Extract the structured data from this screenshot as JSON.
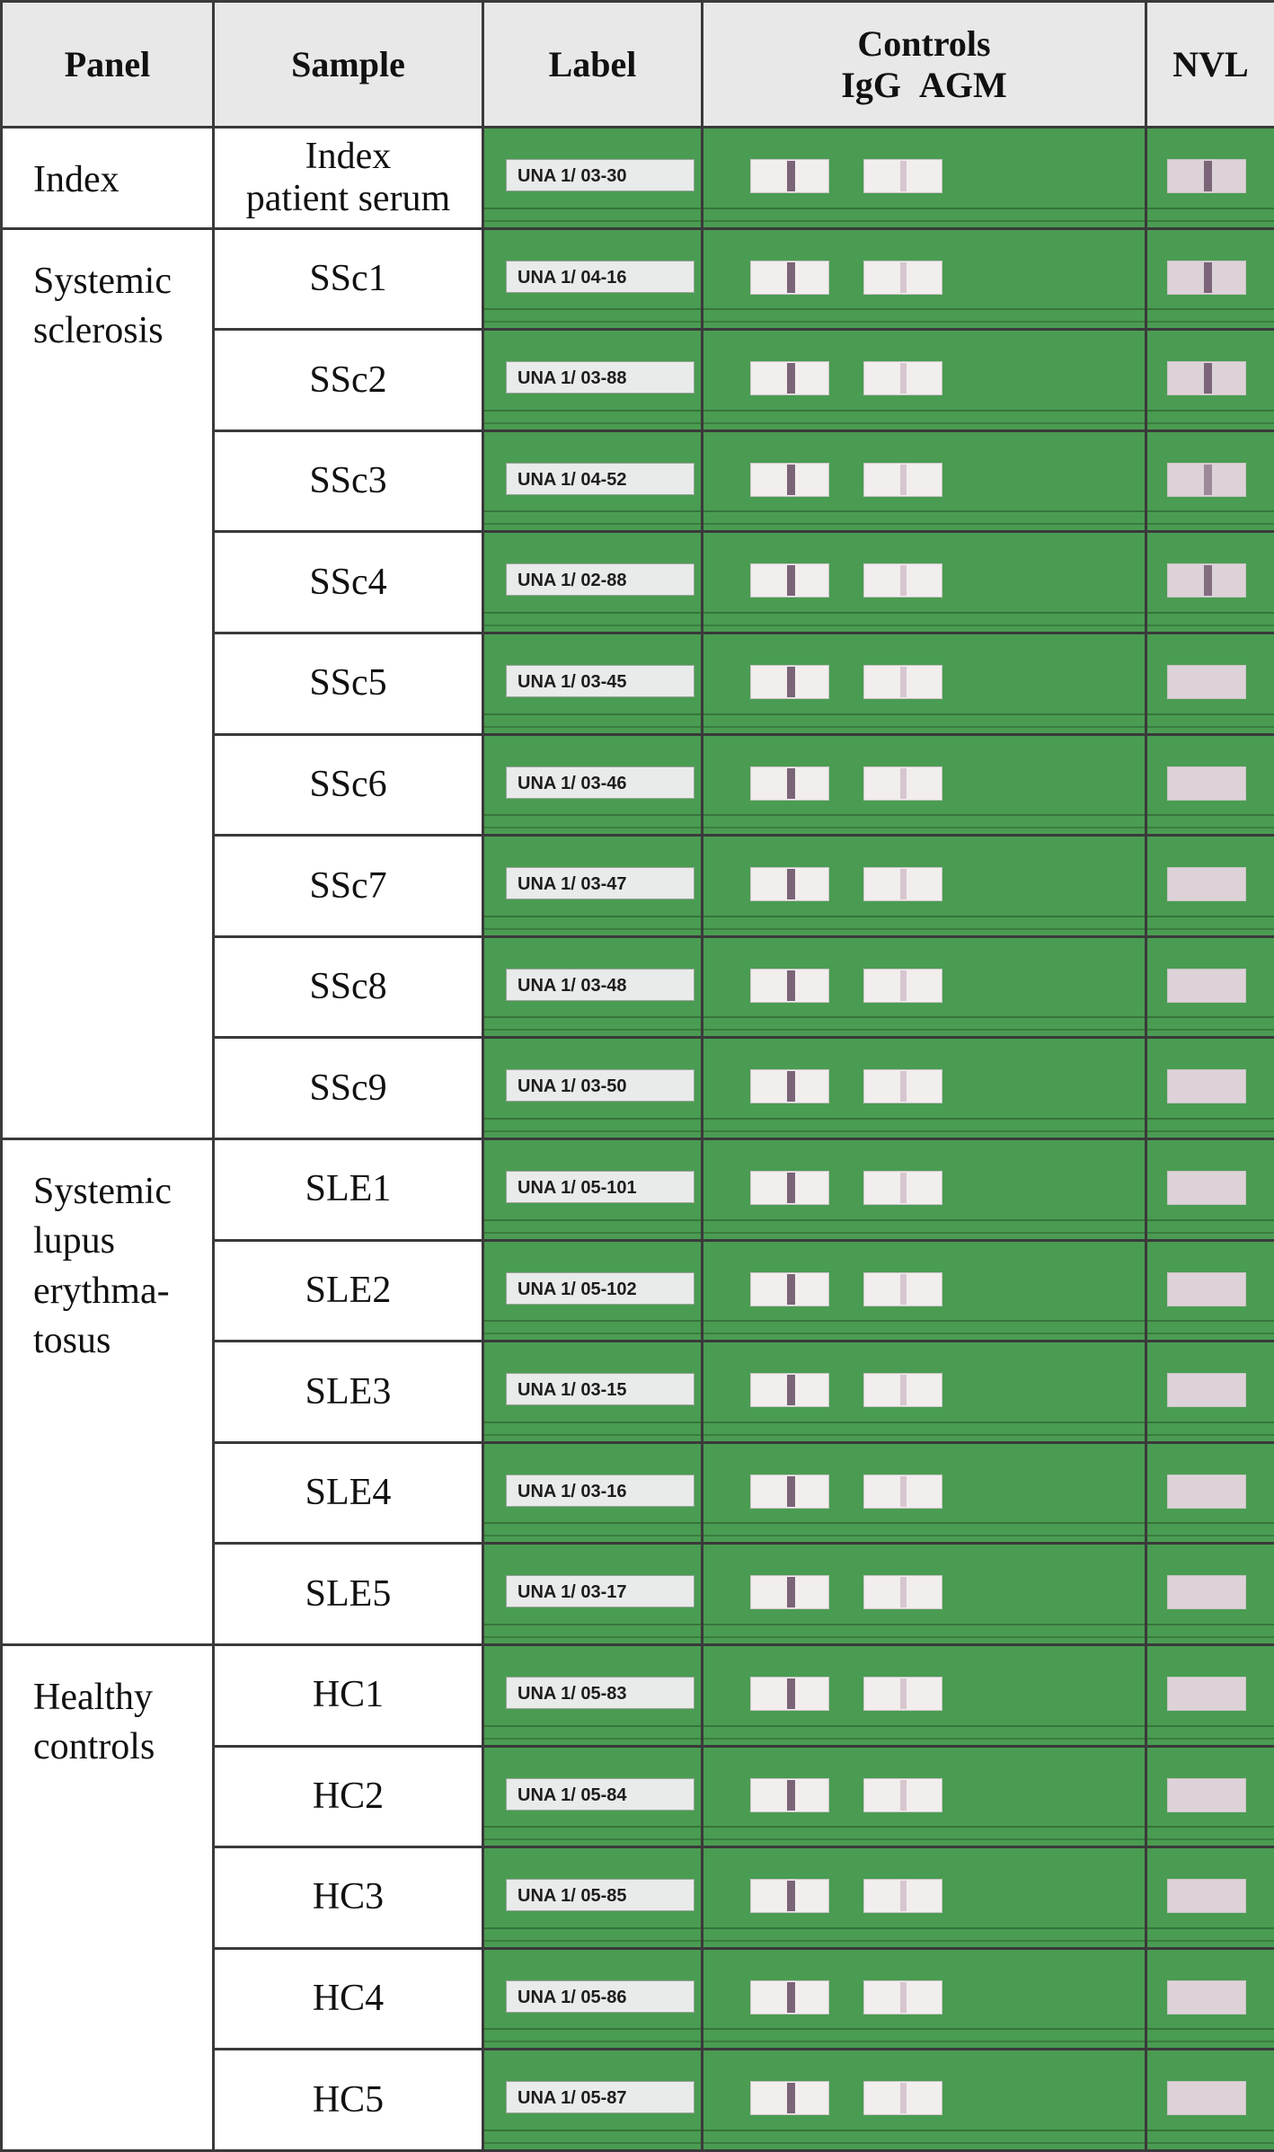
{
  "header": {
    "panel": "Panel",
    "sample": "Sample",
    "label": "Label",
    "controls": "Controls",
    "igg": "IgG",
    "agm": "AGM",
    "nvl": "NVL"
  },
  "groups": [
    {
      "panel_lines": [
        "Index"
      ],
      "rows": [
        {
          "sample_lines": [
            "Index",
            "patient serum"
          ],
          "label": "UNA 1/ 03-30",
          "igg": 1,
          "agm": 0.3,
          "nvl": 1
        }
      ]
    },
    {
      "panel_lines": [
        "Systemic",
        "sclerosis"
      ],
      "rows": [
        {
          "sample_lines": [
            "SSc1"
          ],
          "label": "UNA 1/ 04-16",
          "igg": 1,
          "agm": 0.3,
          "nvl": 1
        },
        {
          "sample_lines": [
            "SSc2"
          ],
          "label": "UNA 1/ 03-88",
          "igg": 1,
          "agm": 0.3,
          "nvl": 1
        },
        {
          "sample_lines": [
            "SSc3"
          ],
          "label": "UNA 1/ 04-52",
          "igg": 1,
          "agm": 0.3,
          "nvl": 0.55
        },
        {
          "sample_lines": [
            "SSc4"
          ],
          "label": "UNA 1/ 02-88",
          "igg": 1,
          "agm": 0.3,
          "nvl": 0.9
        },
        {
          "sample_lines": [
            "SSc5"
          ],
          "label": "UNA 1/ 03-45",
          "igg": 1,
          "agm": 0.3,
          "nvl": 0
        },
        {
          "sample_lines": [
            "SSc6"
          ],
          "label": "UNA 1/ 03-46",
          "igg": 1,
          "agm": 0.3,
          "nvl": 0
        },
        {
          "sample_lines": [
            "SSc7"
          ],
          "label": "UNA 1/ 03-47",
          "igg": 1,
          "agm": 0.3,
          "nvl": 0
        },
        {
          "sample_lines": [
            "SSc8"
          ],
          "label": "UNA 1/ 03-48",
          "igg": 1,
          "agm": 0.3,
          "nvl": 0
        },
        {
          "sample_lines": [
            "SSc9"
          ],
          "label": "UNA 1/ 03-50",
          "igg": 1,
          "agm": 0.3,
          "nvl": 0
        }
      ]
    },
    {
      "panel_lines": [
        "Systemic",
        "lupus",
        "erythma-",
        "tosus"
      ],
      "rows": [
        {
          "sample_lines": [
            "SLE1"
          ],
          "label": "UNA 1/ 05-101",
          "igg": 1,
          "agm": 0.3,
          "nvl": 0
        },
        {
          "sample_lines": [
            "SLE2"
          ],
          "label": "UNA 1/ 05-102",
          "igg": 1,
          "agm": 0.3,
          "nvl": 0
        },
        {
          "sample_lines": [
            "SLE3"
          ],
          "label": "UNA 1/ 03-15",
          "igg": 1,
          "agm": 0.3,
          "nvl": 0
        },
        {
          "sample_lines": [
            "SLE4"
          ],
          "label": "UNA 1/ 03-16",
          "igg": 1,
          "agm": 0.3,
          "nvl": 0
        },
        {
          "sample_lines": [
            "SLE5"
          ],
          "label": "UNA 1/ 03-17",
          "igg": 1,
          "agm": 0.3,
          "nvl": 0
        }
      ]
    },
    {
      "panel_lines": [
        "Healthy",
        "controls"
      ],
      "rows": [
        {
          "sample_lines": [
            "HC1"
          ],
          "label": "UNA 1/ 05-83",
          "igg": 1,
          "agm": 0.3,
          "nvl": 0
        },
        {
          "sample_lines": [
            "HC2"
          ],
          "label": "UNA 1/ 05-84",
          "igg": 1,
          "agm": 0.3,
          "nvl": 0
        },
        {
          "sample_lines": [
            "HC3"
          ],
          "label": "UNA 1/ 05-85",
          "igg": 1,
          "agm": 0.3,
          "nvl": 0
        },
        {
          "sample_lines": [
            "HC4"
          ],
          "label": "UNA 1/ 05-86",
          "igg": 1,
          "agm": 0.3,
          "nvl": 0
        },
        {
          "sample_lines": [
            "HC5"
          ],
          "label": "UNA 1/ 05-87",
          "igg": 1,
          "agm": 0.3,
          "nvl": 0
        }
      ]
    }
  ]
}
